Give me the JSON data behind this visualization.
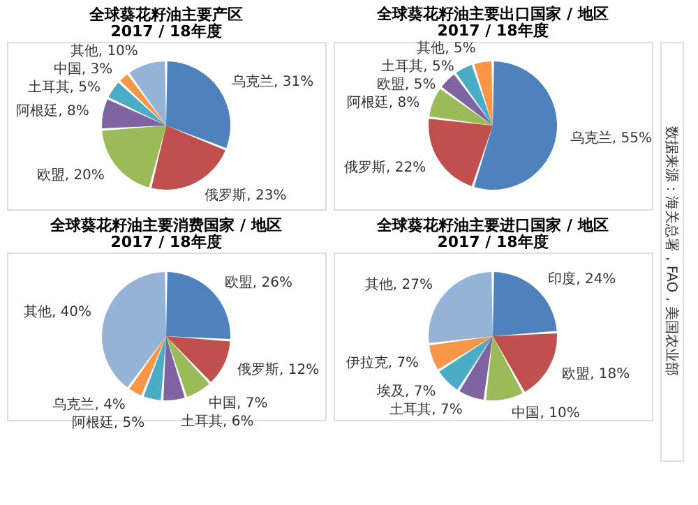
{
  "chart_data": [
    {
      "type": "pie",
      "title": "全球葵花籽油主要产区",
      "subtitle": "2017 / 18年度",
      "categories": [
        "乌克兰",
        "俄罗斯",
        "欧盟",
        "阿根廷",
        "土耳其",
        "中国",
        "其他"
      ],
      "values": [
        31,
        23,
        20,
        8,
        5,
        3,
        10
      ],
      "value_labels": [
        "31%",
        "23%",
        "20%",
        "8%",
        "5%",
        "3%",
        "10%"
      ],
      "colors": [
        "#4f81bd",
        "#c0504d",
        "#9bbb59",
        "#8064a2",
        "#4bacc6",
        "#f79646",
        "#95b3d7"
      ]
    },
    {
      "type": "pie",
      "title": "全球葵花籽油主要出口国家 / 地区",
      "subtitle": "2017 / 18年度",
      "categories": [
        "乌克兰",
        "俄罗斯",
        "阿根廷",
        "欧盟",
        "土耳其",
        "其他"
      ],
      "values": [
        55,
        22,
        8,
        5,
        5,
        5
      ],
      "value_labels": [
        "55%",
        "22%",
        "8%",
        "5%",
        "5%",
        "5%"
      ],
      "colors": [
        "#4f81bd",
        "#c0504d",
        "#9bbb59",
        "#8064a2",
        "#4bacc6",
        "#f79646"
      ],
      "annotations": [
        "数据来源：海关总署，FAO，美国农业部"
      ]
    },
    {
      "type": "pie",
      "title": "全球葵花籽油主要消费国家 / 地区",
      "subtitle": "2017 / 18年度",
      "categories": [
        "欧盟",
        "俄罗斯",
        "中国",
        "土耳其",
        "阿根廷",
        "乌克兰",
        "其他"
      ],
      "values": [
        26,
        12,
        7,
        6,
        5,
        4,
        40
      ],
      "value_labels": [
        "26%",
        "12%",
        "7%",
        "6%",
        "5%",
        "4%",
        "40%"
      ],
      "colors": [
        "#4f81bd",
        "#c0504d",
        "#9bbb59",
        "#8064a2",
        "#4bacc6",
        "#f79646",
        "#95b3d7"
      ]
    },
    {
      "type": "pie",
      "title": "全球葵花籽油主要进口国家 / 地区",
      "subtitle": "2017 / 18年度",
      "categories": [
        "印度",
        "欧盟",
        "中国",
        "土耳其",
        "埃及",
        "伊拉克",
        "其他"
      ],
      "values": [
        24,
        18,
        10,
        7,
        7,
        7,
        27
      ],
      "value_labels": [
        "24%",
        "18%",
        "10%",
        "7%",
        "7%",
        "7%",
        "27%"
      ],
      "colors": [
        "#4f81bd",
        "#c0504d",
        "#9bbb59",
        "#8064a2",
        "#4bacc6",
        "#f79646",
        "#95b3d7"
      ]
    }
  ]
}
